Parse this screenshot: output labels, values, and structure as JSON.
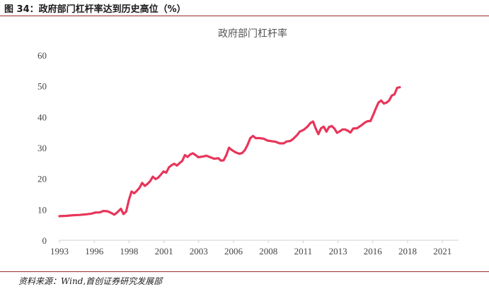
{
  "figure_title": "图 34：政府部门杠杆率达到历史高位（%）",
  "source_note": "资料来源：Wind,首创证券研究发展部",
  "colors": {
    "line": "#e8355a",
    "axis": "#d0d0d0",
    "rule": "#9a2b2b"
  },
  "chart_data": {
    "type": "line",
    "title": "政府部门杠杆率",
    "xlabel": "",
    "ylabel": "",
    "xlim": [
      1993,
      2022.9
    ],
    "ylim": [
      0,
      60
    ],
    "yticks": [
      0,
      10,
      20,
      30,
      40,
      50,
      60
    ],
    "xticks": [
      "1993",
      "1996",
      "1998",
      "2001",
      "2003",
      "2006",
      "2008",
      "2011",
      "2013",
      "2016",
      "2018",
      "2021"
    ],
    "grid": false,
    "legend": "none",
    "series": [
      {
        "values": [
          [
            1993.0,
            7.8
          ],
          [
            1993.5,
            7.9
          ],
          [
            1994.0,
            8.1
          ],
          [
            1994.5,
            8.2
          ],
          [
            1995.0,
            8.4
          ],
          [
            1995.4,
            8.6
          ],
          [
            1995.7,
            9.0
          ],
          [
            1996.0,
            9.0
          ],
          [
            1996.3,
            9.5
          ],
          [
            1996.6,
            9.4
          ],
          [
            1996.9,
            8.8
          ],
          [
            1997.1,
            8.3
          ],
          [
            1997.3,
            8.9
          ],
          [
            1997.6,
            10.2
          ],
          [
            1997.8,
            8.5
          ],
          [
            1998.0,
            9.3
          ],
          [
            1998.2,
            13.0
          ],
          [
            1998.4,
            15.8
          ],
          [
            1998.6,
            15.2
          ],
          [
            1998.8,
            16.0
          ],
          [
            1999.0,
            17.0
          ],
          [
            1999.2,
            18.6
          ],
          [
            1999.4,
            17.6
          ],
          [
            1999.6,
            18.3
          ],
          [
            1999.8,
            19.2
          ],
          [
            2000.0,
            20.6
          ],
          [
            2000.2,
            19.8
          ],
          [
            2000.4,
            20.3
          ],
          [
            2000.6,
            21.3
          ],
          [
            2000.8,
            22.3
          ],
          [
            2001.0,
            21.9
          ],
          [
            2001.2,
            23.6
          ],
          [
            2001.4,
            24.3
          ],
          [
            2001.6,
            24.8
          ],
          [
            2001.8,
            24.2
          ],
          [
            2002.0,
            25.0
          ],
          [
            2002.2,
            25.7
          ],
          [
            2002.4,
            27.6
          ],
          [
            2002.6,
            27.0
          ],
          [
            2002.8,
            27.8
          ],
          [
            2003.0,
            28.2
          ],
          [
            2003.2,
            27.6
          ],
          [
            2003.4,
            26.9
          ],
          [
            2003.7,
            27.1
          ],
          [
            2004.0,
            27.4
          ],
          [
            2004.3,
            26.9
          ],
          [
            2004.6,
            26.4
          ],
          [
            2004.9,
            26.6
          ],
          [
            2005.1,
            25.8
          ],
          [
            2005.3,
            25.9
          ],
          [
            2005.5,
            27.6
          ],
          [
            2005.7,
            30.0
          ],
          [
            2005.9,
            29.3
          ],
          [
            2006.2,
            28.5
          ],
          [
            2006.5,
            28.0
          ],
          [
            2006.7,
            28.3
          ],
          [
            2006.9,
            29.3
          ],
          [
            2007.1,
            31.0
          ],
          [
            2007.3,
            33.1
          ],
          [
            2007.5,
            33.8
          ],
          [
            2007.7,
            33.1
          ],
          [
            2008.0,
            33.1
          ],
          [
            2008.3,
            32.9
          ],
          [
            2008.6,
            32.3
          ],
          [
            2008.9,
            32.1
          ],
          [
            2009.2,
            31.9
          ],
          [
            2009.5,
            31.4
          ],
          [
            2009.8,
            31.4
          ],
          [
            2010.0,
            32.0
          ],
          [
            2010.3,
            32.2
          ],
          [
            2010.5,
            32.8
          ],
          [
            2010.8,
            34.1
          ],
          [
            2011.0,
            35.2
          ],
          [
            2011.3,
            35.8
          ],
          [
            2011.6,
            36.9
          ],
          [
            2011.8,
            38.0
          ],
          [
            2012.0,
            38.5
          ],
          [
            2012.2,
            36.2
          ],
          [
            2012.4,
            34.4
          ],
          [
            2012.6,
            36.3
          ],
          [
            2012.8,
            36.8
          ],
          [
            2013.0,
            35.2
          ],
          [
            2013.2,
            36.7
          ],
          [
            2013.4,
            37.0
          ],
          [
            2013.6,
            36.2
          ],
          [
            2013.8,
            34.8
          ],
          [
            2014.0,
            35.3
          ],
          [
            2014.2,
            35.9
          ],
          [
            2014.4,
            35.9
          ],
          [
            2014.6,
            35.5
          ],
          [
            2014.8,
            34.9
          ],
          [
            2015.0,
            36.2
          ],
          [
            2015.3,
            36.3
          ],
          [
            2015.6,
            37.2
          ],
          [
            2015.9,
            38.2
          ],
          [
            2016.1,
            38.6
          ],
          [
            2016.3,
            38.6
          ],
          [
            2016.5,
            40.6
          ],
          [
            2016.7,
            42.7
          ],
          [
            2016.9,
            44.6
          ],
          [
            2017.1,
            45.3
          ],
          [
            2017.3,
            44.3
          ],
          [
            2017.5,
            44.6
          ],
          [
            2017.7,
            45.3
          ],
          [
            2017.9,
            46.9
          ],
          [
            2018.1,
            47.3
          ],
          [
            2018.3,
            49.4
          ],
          [
            2018.5,
            49.6
          ]
        ]
      }
    ]
  }
}
